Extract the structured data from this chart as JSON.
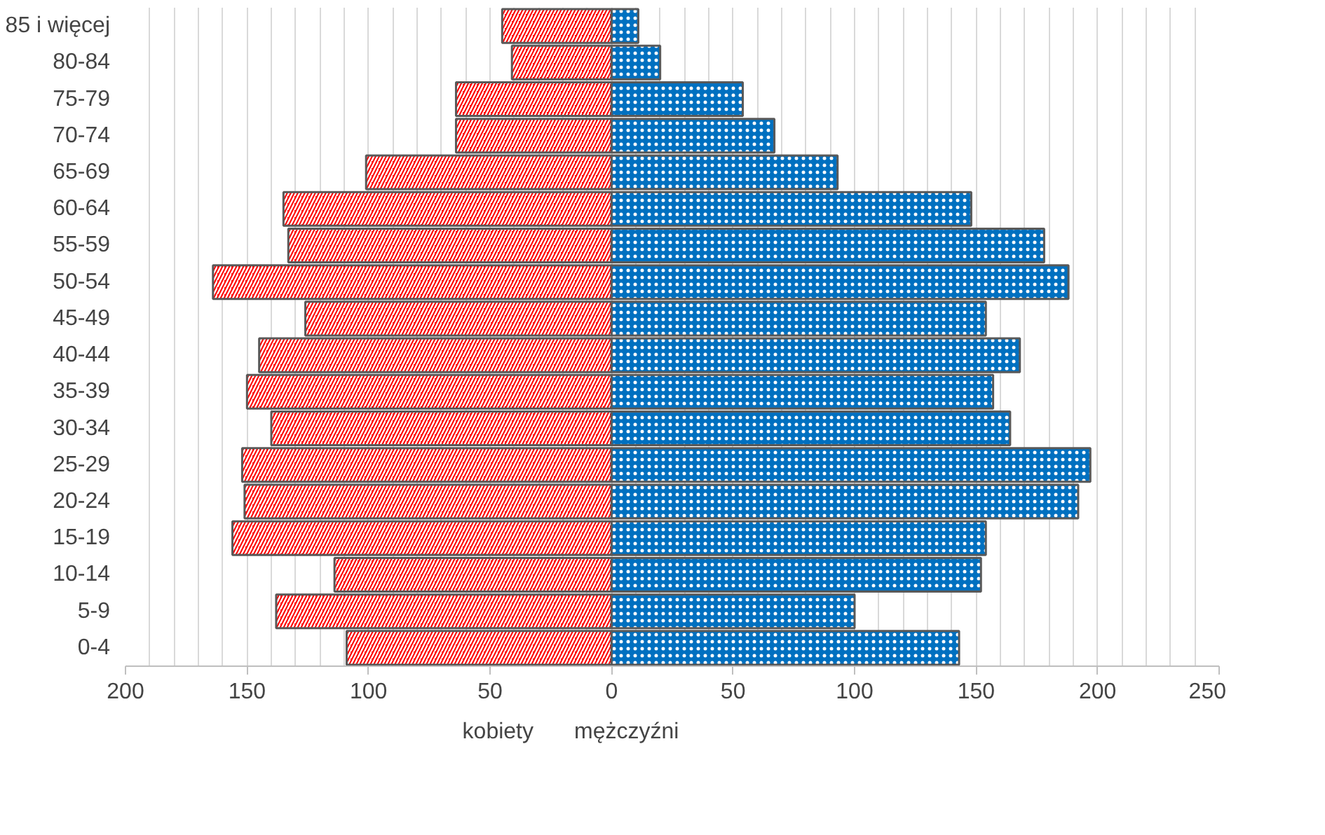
{
  "chart_data": {
    "type": "bar",
    "orientation": "horizontal",
    "categories": [
      "85 i więcej",
      "80-84",
      "75-79",
      "70-74",
      "65-69",
      "60-64",
      "55-59",
      "50-54",
      "45-49",
      "40-44",
      "35-39",
      "30-34",
      "25-29",
      "20-24",
      "15-19",
      "10-14",
      "5-9",
      "0-4"
    ],
    "series": [
      {
        "name": "kobiety",
        "color": "#ff0000",
        "values": [
          -45,
          -41,
          -64,
          -64,
          -101,
          -135,
          -133,
          -164,
          -126,
          -145,
          -150,
          -140,
          -152,
          -151,
          -156,
          -114,
          -138,
          -109
        ]
      },
      {
        "name": "mężczyźni",
        "color": "#0070c0",
        "values": [
          11,
          20,
          54,
          67,
          93,
          148,
          178,
          188,
          154,
          168,
          157,
          164,
          197,
          192,
          154,
          152,
          100,
          143
        ]
      }
    ],
    "xlim": [
      -200,
      250
    ],
    "xticks": [
      {
        "value": -200,
        "label": "200"
      },
      {
        "value": -150,
        "label": "150"
      },
      {
        "value": -100,
        "label": "100"
      },
      {
        "value": -50,
        "label": "50"
      },
      0,
      50,
      100,
      150,
      200,
      250
    ],
    "stacked": true,
    "grid": "x",
    "legend": "bottom"
  }
}
